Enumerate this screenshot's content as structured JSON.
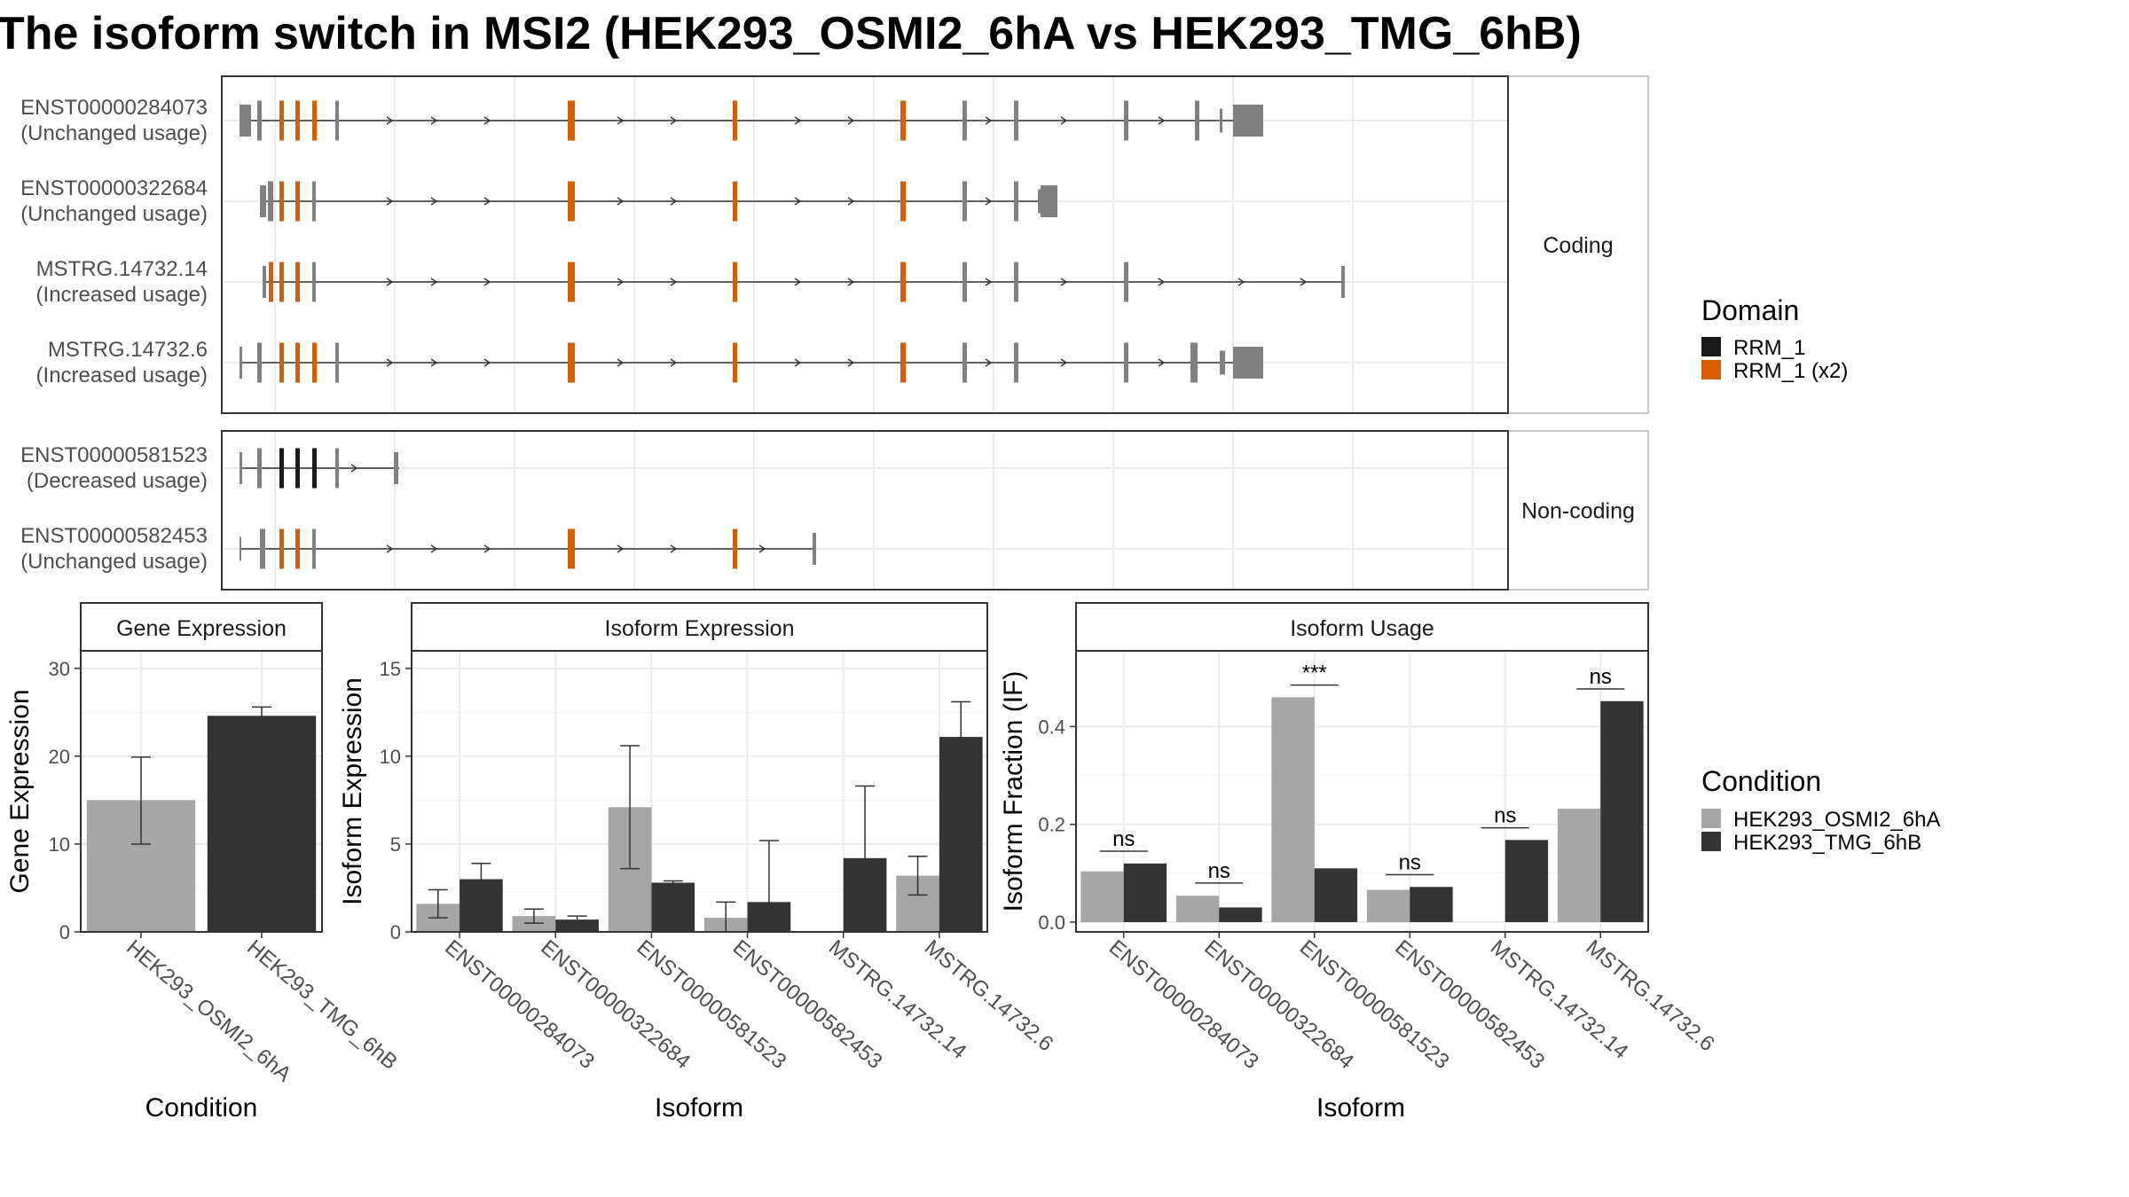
{
  "title": "The isoform switch in MSI2 (HEK293_OSMI2_6hA vs HEK293_TMG_6hB)",
  "colors": {
    "rrm1": "#1a1a1a",
    "rrm1_x2": "#D55E00",
    "exon": "#808080",
    "cond_a": "#a6a6a6",
    "cond_b": "#333333",
    "panel_bg": "#ffffff",
    "strip_bg": "#ffffff",
    "grid": "#ebebeb",
    "border": "#333333"
  },
  "structure": {
    "facets": [
      "Coding",
      "Non-coding"
    ],
    "transcripts": [
      {
        "id": "ENST00000284073",
        "usage": "(Unchanged usage)",
        "facet": "Coding",
        "line": [
          270,
          1400
        ],
        "exons": [
          [
            270,
            283,
            0.4
          ],
          [
            290,
            295,
            0.5
          ],
          [
            315,
            320,
            0.5,
            "o"
          ],
          [
            333,
            338,
            0.5,
            "o"
          ],
          [
            352,
            357,
            0.5,
            "o"
          ],
          [
            378,
            382,
            0.5
          ],
          [
            640,
            648,
            0.5,
            "o"
          ],
          [
            826,
            831,
            0.5,
            "o"
          ],
          [
            1015,
            1021,
            0.5,
            "o"
          ],
          [
            1085,
            1090,
            0.5
          ],
          [
            1143,
            1148,
            0.5
          ],
          [
            1267,
            1272,
            0.5
          ],
          [
            1347,
            1352,
            0.5
          ],
          [
            1375,
            1378,
            0.3
          ],
          [
            1390,
            1424,
            0.4
          ]
        ],
        "arrows": [
          440,
          490,
          550,
          700,
          760,
          900,
          960,
          1115,
          1200,
          1310
        ]
      },
      {
        "id": "ENST00000322684",
        "usage": "(Unchanged usage)",
        "facet": "Coding",
        "line": [
          293,
          1170
        ],
        "exons": [
          [
            293,
            300,
            0.4
          ],
          [
            302,
            308,
            0.5
          ],
          [
            315,
            320,
            0.5,
            "o"
          ],
          [
            333,
            338,
            0.5,
            "o"
          ],
          [
            352,
            356,
            0.5
          ],
          [
            640,
            648,
            0.5,
            "o"
          ],
          [
            826,
            831,
            0.5,
            "o"
          ],
          [
            1015,
            1021,
            0.5,
            "o"
          ],
          [
            1085,
            1090,
            0.5
          ],
          [
            1143,
            1148,
            0.5
          ],
          [
            1170,
            1173,
            0.3
          ],
          [
            1173,
            1192,
            0.4
          ]
        ],
        "arrows": [
          440,
          490,
          550,
          700,
          760,
          900,
          960,
          1115
        ]
      },
      {
        "id": "MSTRG.14732.14",
        "usage": "(Increased usage)",
        "facet": "Coding",
        "line": [
          296,
          1515
        ],
        "exons": [
          [
            296,
            300,
            0.4
          ],
          [
            303,
            308,
            0.5,
            "o"
          ],
          [
            315,
            320,
            0.5,
            "o"
          ],
          [
            333,
            338,
            0.5,
            "o"
          ],
          [
            352,
            356,
            0.5
          ],
          [
            640,
            648,
            0.5,
            "o"
          ],
          [
            826,
            831,
            0.5,
            "o"
          ],
          [
            1015,
            1021,
            0.5,
            "o"
          ],
          [
            1085,
            1090,
            0.5
          ],
          [
            1143,
            1148,
            0.5
          ],
          [
            1267,
            1272,
            0.5
          ],
          [
            1512,
            1516,
            0.4
          ]
        ],
        "arrows": [
          440,
          490,
          550,
          700,
          760,
          900,
          960,
          1115,
          1200,
          1310,
          1400,
          1470
        ]
      },
      {
        "id": "MSTRG.14732.6",
        "usage": "(Increased usage)",
        "facet": "Coding",
        "line": [
          270,
          1400
        ],
        "exons": [
          [
            270,
            273,
            0.4
          ],
          [
            290,
            295,
            0.5
          ],
          [
            315,
            320,
            0.5,
            "o"
          ],
          [
            333,
            338,
            0.5,
            "o"
          ],
          [
            352,
            357,
            0.5,
            "o"
          ],
          [
            378,
            382,
            0.5
          ],
          [
            640,
            648,
            0.5,
            "o"
          ],
          [
            826,
            831,
            0.5,
            "o"
          ],
          [
            1015,
            1021,
            0.5,
            "o"
          ],
          [
            1085,
            1090,
            0.5
          ],
          [
            1143,
            1148,
            0.5
          ],
          [
            1267,
            1272,
            0.5
          ],
          [
            1342,
            1350,
            0.5
          ],
          [
            1375,
            1381,
            0.3
          ],
          [
            1390,
            1424,
            0.4
          ]
        ],
        "arrows": [
          440,
          490,
          550,
          700,
          760,
          900,
          960,
          1115,
          1200,
          1310
        ]
      },
      {
        "id": "ENST00000581523",
        "usage": "(Decreased usage)",
        "facet": "Non-coding",
        "line": [
          270,
          450
        ],
        "exons": [
          [
            270,
            273,
            0.4
          ],
          [
            290,
            295,
            0.5
          ],
          [
            315,
            320,
            0.5,
            "k"
          ],
          [
            333,
            338,
            0.5,
            "k"
          ],
          [
            352,
            357,
            0.5,
            "k"
          ],
          [
            378,
            382,
            0.5
          ],
          [
            444,
            449,
            0.4
          ]
        ],
        "arrows": [
          400
        ]
      },
      {
        "id": "ENST00000582453",
        "usage": "(Unchanged usage)",
        "facet": "Non-coding",
        "line": [
          270,
          920
        ],
        "exons": [
          [
            270,
            272,
            0.3
          ],
          [
            293,
            299,
            0.5
          ],
          [
            315,
            320,
            0.5,
            "o"
          ],
          [
            333,
            338,
            0.5,
            "o"
          ],
          [
            352,
            356,
            0.5
          ],
          [
            640,
            648,
            0.5,
            "o"
          ],
          [
            826,
            831,
            0.5,
            "o"
          ],
          [
            916,
            920,
            0.4
          ]
        ],
        "arrows": [
          440,
          490,
          550,
          700,
          760,
          860
        ]
      }
    ]
  },
  "legend_domain": {
    "title": "Domain",
    "items": [
      {
        "label": "RRM_1",
        "color": "#1a1a1a"
      },
      {
        "label": "RRM_1 (x2)",
        "color": "#D55E00"
      }
    ]
  },
  "legend_condition": {
    "title": "Condition",
    "items": [
      {
        "label": "HEK293_OSMI2_6hA",
        "color": "#a6a6a6"
      },
      {
        "label": "HEK293_TMG_6hB",
        "color": "#333333"
      }
    ]
  },
  "chart_data": [
    {
      "type": "bar",
      "strip": "Gene Expression",
      "xlabel": "Condition",
      "ylabel": "Gene Expression",
      "categories": [
        "HEK293_OSMI2_6hA",
        "HEK293_TMG_6hB"
      ],
      "ylim": [
        0,
        32
      ],
      "yticks": [
        0,
        10,
        20,
        30
      ],
      "series": [
        {
          "values": [
            15.0,
            24.6
          ],
          "err_low": [
            10.0,
            23.6
          ],
          "err_high": [
            19.9,
            25.6
          ]
        }
      ],
      "color_by_category": true,
      "grid": true
    },
    {
      "type": "bar",
      "strip": "Isoform Expression",
      "xlabel": "Isoform",
      "ylabel": "Isoform Expression",
      "categories": [
        "ENST00000284073",
        "ENST00000322684",
        "ENST00000581523",
        "ENST00000582453",
        "MSTRG.14732.14",
        "MSTRG.14732.6"
      ],
      "ylim": [
        0,
        16
      ],
      "yticks": [
        0,
        5,
        10,
        15
      ],
      "series": [
        {
          "name": "HEK293_OSMI2_6hA",
          "values": [
            1.6,
            0.9,
            7.1,
            0.8,
            0.0,
            3.2
          ],
          "err_low": [
            0.8,
            0.5,
            3.6,
            0.0,
            0.0,
            2.1
          ],
          "err_high": [
            2.4,
            1.3,
            10.6,
            1.7,
            0.0,
            4.3
          ]
        },
        {
          "name": "HEK293_TMG_6hB",
          "values": [
            3.0,
            0.7,
            2.8,
            1.7,
            4.2,
            11.1
          ],
          "err_low": [
            2.2,
            0.5,
            2.6,
            0.0,
            0.0,
            9.1
          ],
          "err_high": [
            3.9,
            0.9,
            2.9,
            5.2,
            8.3,
            13.1
          ]
        }
      ],
      "grid": true
    },
    {
      "type": "bar",
      "strip": "Isoform Usage",
      "xlabel": "Isoform",
      "ylabel": "Isoform Fraction (IF)",
      "categories": [
        "ENST00000284073",
        "ENST00000322684",
        "ENST00000581523",
        "ENST00000582453",
        "MSTRG.14732.14",
        "MSTRG.14732.6"
      ],
      "ylim": [
        -0.02,
        0.555
      ],
      "yticks": [
        0.0,
        0.2,
        0.4
      ],
      "ytick_labels": [
        "0.0",
        "0.2",
        "0.4"
      ],
      "series": [
        {
          "name": "HEK293_OSMI2_6hA",
          "values": [
            0.104,
            0.054,
            0.46,
            0.066,
            0.0,
            0.232
          ]
        },
        {
          "name": "HEK293_TMG_6hB",
          "values": [
            0.12,
            0.03,
            0.11,
            0.072,
            0.168,
            0.452
          ]
        }
      ],
      "annotations": [
        {
          "label": "ns",
          "y": 0.145
        },
        {
          "label": "ns",
          "y": 0.08
        },
        {
          "label": "***",
          "y": 0.485
        },
        {
          "label": "ns",
          "y": 0.097
        },
        {
          "label": "ns",
          "y": 0.193
        },
        {
          "label": "ns",
          "y": 0.477
        }
      ],
      "grid": true
    }
  ]
}
